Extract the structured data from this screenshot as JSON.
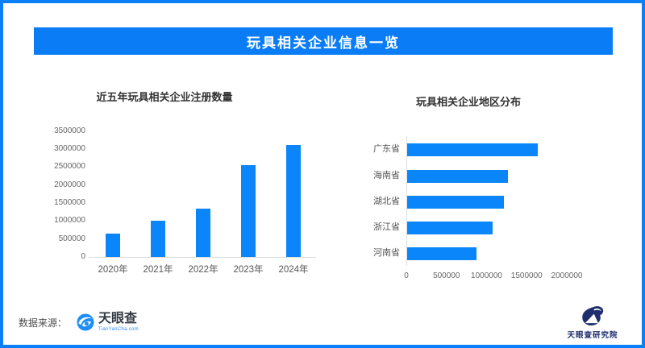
{
  "banner": {
    "title": "玩具相关企业信息一览"
  },
  "colors": {
    "accent_blue": "#0a80f8",
    "banner_blue": "#0a7df6",
    "bar_blue": "#0b86fa",
    "title_text": "#333333",
    "axis_text": "#666666",
    "category_text": "#555555",
    "axis_line": "#dddddd",
    "footer_text": "#4d4d4d",
    "brand_dark": "#333a45",
    "brand_blue": "#2f8af5",
    "navy": "#1f2f6e",
    "white": "#ffffff"
  },
  "chart_data": [
    {
      "type": "bar",
      "title": "近五年玩具相关企业注册数量",
      "categories": [
        "2020年",
        "2021年",
        "2022年",
        "2023年",
        "2024年"
      ],
      "values": [
        650000,
        1000000,
        1350000,
        2550000,
        3100000
      ],
      "xlabel": "",
      "ylabel": "",
      "ylim": [
        0,
        3500000
      ],
      "y_ticks": [
        0,
        500000,
        1000000,
        1500000,
        2000000,
        2500000,
        3000000,
        3500000
      ],
      "grid": false,
      "legend": "none",
      "bar_color": "#0b86fa"
    },
    {
      "type": "bar-horizontal",
      "title": "玩具相关企业地区分布",
      "categories": [
        "广东省",
        "海南省",
        "湖北省",
        "浙江省",
        "河南省"
      ],
      "values": [
        1630000,
        1260000,
        1210000,
        1070000,
        860000
      ],
      "xlabel": "",
      "ylabel": "",
      "xlim": [
        0,
        2000000
      ],
      "x_ticks": [
        0,
        500000,
        1000000,
        1500000,
        2000000
      ],
      "grid": false,
      "legend": "none",
      "bar_color": "#0b86fa"
    }
  ],
  "footer": {
    "source_label": "数据来源：",
    "brand_name": "天眼查",
    "brand_url": "TianYanCha.com",
    "research_name": "天眼查研究院"
  },
  "icons": {
    "left_logo": "tianyancha-swirl-icon",
    "right_logo": "tianyancha-research-eye-icon"
  }
}
